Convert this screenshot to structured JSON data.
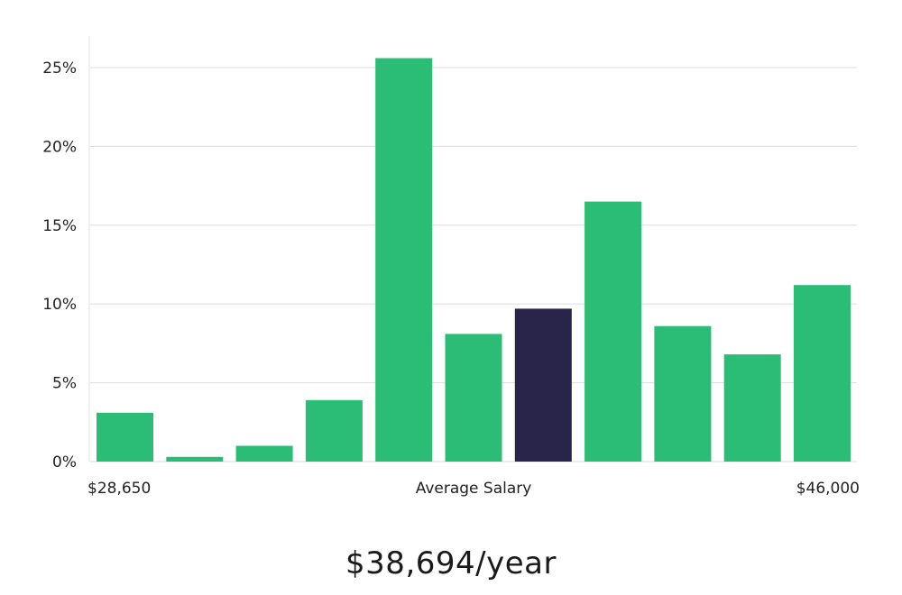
{
  "chart_data": {
    "type": "bar",
    "y_ticks": [
      "0%",
      "5%",
      "10%",
      "15%",
      "20%",
      "25%"
    ],
    "y_tick_values": [
      0,
      5,
      10,
      15,
      20,
      25
    ],
    "ylim": [
      0,
      27
    ],
    "grid": true,
    "values": [
      3.1,
      0.3,
      1.0,
      3.9,
      25.6,
      8.1,
      9.7,
      16.5,
      8.6,
      6.8,
      11.2
    ],
    "highlight_index": 6,
    "x_labels": {
      "min": "$28,650",
      "middle": "Average Salary",
      "max": "$46,000"
    },
    "colors": {
      "bar": "#2bbd76",
      "highlight": "#28244a",
      "grid": "#dddddd",
      "axis": "#e3e3e3"
    }
  },
  "summary": {
    "salary": "$38,694/year"
  }
}
